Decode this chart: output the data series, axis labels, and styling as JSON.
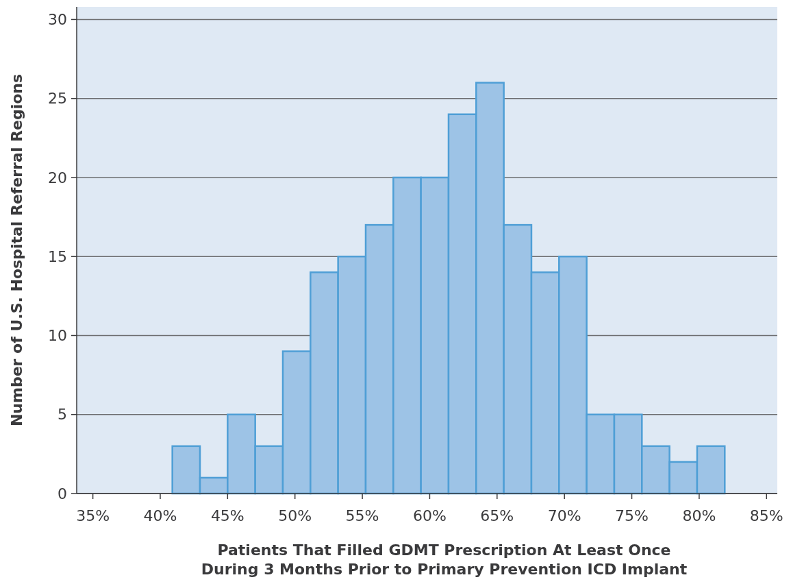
{
  "chart_data": {
    "type": "histogram",
    "xlabel": "Patients That Filled GDMT Prescription At Least Once\nDuring 3 Months Prior to Primary Prevention ICD Implant",
    "ylabel": "Number of U.S. Hospital Referral Regions",
    "bins": [
      40.9,
      42.95,
      45.0,
      47.05,
      49.1,
      51.15,
      53.2,
      55.25,
      57.3,
      59.35,
      61.4,
      63.45,
      65.5,
      67.55,
      69.6,
      71.65,
      73.7,
      75.75,
      77.8,
      79.85,
      81.9
    ],
    "values": [
      3,
      1,
      5,
      3,
      9,
      14,
      15,
      17,
      20,
      20,
      24,
      26,
      17,
      14,
      15,
      5,
      5,
      3,
      2,
      3
    ],
    "color": "#9dc3e6",
    "xlim": [
      33.8,
      85.8
    ],
    "xticks": [
      {
        "value": 35,
        "label": "35%"
      },
      {
        "value": 40,
        "label": "40%"
      },
      {
        "value": 45,
        "label": "45%"
      },
      {
        "value": 50,
        "label": "50%"
      },
      {
        "value": 55,
        "label": "55%"
      },
      {
        "value": 60,
        "label": "60%"
      },
      {
        "value": 65,
        "label": "65%"
      },
      {
        "value": 70,
        "label": "70%"
      },
      {
        "value": 75,
        "label": "75%"
      },
      {
        "value": 80,
        "label": "80%"
      },
      {
        "value": 85,
        "label": "85%"
      }
    ],
    "ylim": [
      0,
      30.8
    ],
    "yticks": [
      0,
      5,
      10,
      15,
      20,
      25,
      30
    ],
    "grid": "y"
  }
}
